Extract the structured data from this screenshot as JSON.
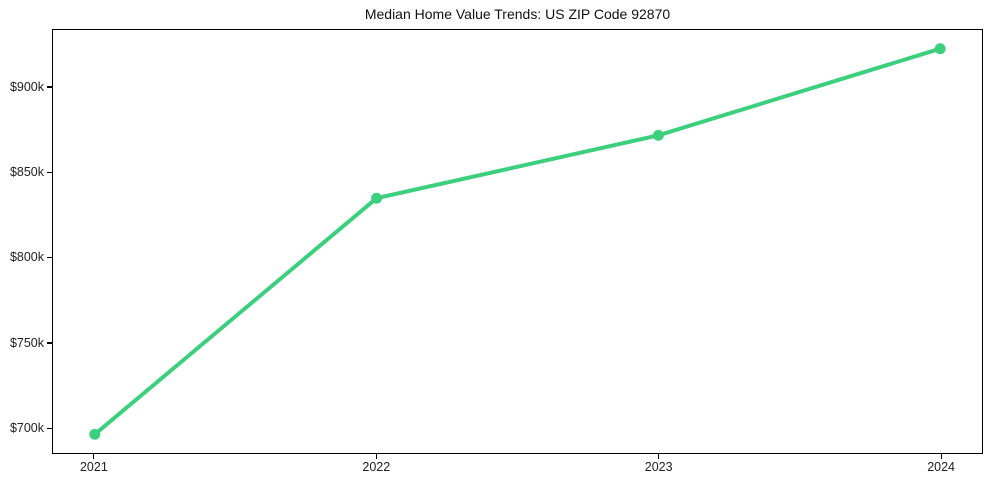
{
  "chart_data": {
    "type": "line",
    "title": "Median Home Value Trends: US ZIP Code 92870",
    "x_tick_labels": [
      "2021",
      "2022",
      "2023",
      "2024"
    ],
    "series": [
      {
        "name": "Median Home Value",
        "values": [
          696000,
          835000,
          872000,
          923000
        ]
      }
    ],
    "y_ticks": [
      {
        "value": 700000,
        "label": "$700k"
      },
      {
        "value": 750000,
        "label": "$750k"
      },
      {
        "value": 800000,
        "label": "$800k"
      },
      {
        "value": 850000,
        "label": "$850k"
      },
      {
        "value": 900000,
        "label": "$900k"
      }
    ],
    "ylim": [
      685000,
      934000
    ],
    "line_color": "#3bcf7e",
    "background_color": "#ffffff",
    "spine_color": "#000000",
    "grid": false,
    "legend": "none",
    "marker": "circle"
  }
}
